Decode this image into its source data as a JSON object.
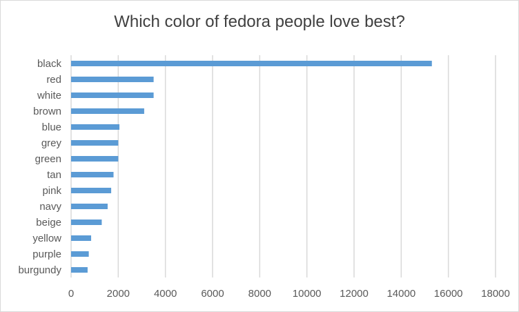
{
  "chart_data": {
    "type": "bar",
    "orientation": "horizontal",
    "title": "Which color of fedora people love best?",
    "xlabel": "",
    "ylabel": "",
    "categories": [
      "black",
      "red",
      "white",
      "brown",
      "blue",
      "grey",
      "green",
      "tan",
      "pink",
      "navy",
      "beige",
      "yellow",
      "purple",
      "burgundy"
    ],
    "values": [
      15300,
      3500,
      3500,
      3100,
      2050,
      2000,
      2000,
      1800,
      1700,
      1550,
      1300,
      850,
      750,
      700
    ],
    "xlim": [
      0,
      18000
    ],
    "xticks": [
      "0",
      "2000",
      "4000",
      "6000",
      "8000",
      "10000",
      "12000",
      "14000",
      "16000",
      "18000"
    ],
    "grid": "vertical",
    "legend": "none",
    "colors": {
      "bar": "#5b9bd5",
      "grid": "#d9d9d9",
      "text": "#595959"
    }
  }
}
